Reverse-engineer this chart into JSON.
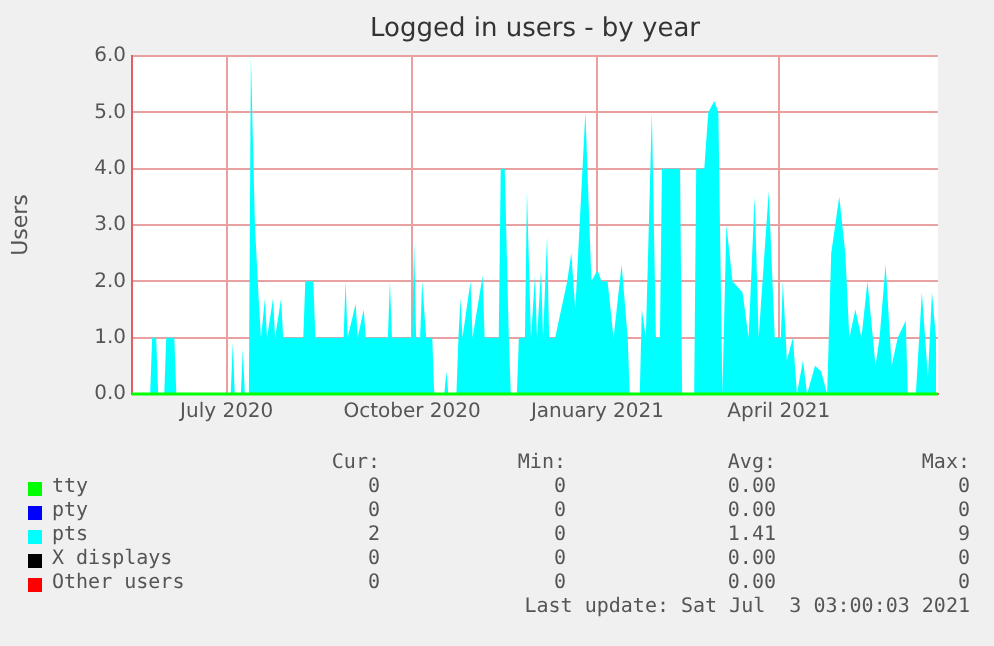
{
  "chart_data": {
    "type": "area",
    "title": "Logged in users - by year",
    "ylabel": "Users",
    "xlim": [
      "2020-05-15",
      "2021-06-19"
    ],
    "xticks": [
      {
        "value": "2020-07-01",
        "label": "July 2020"
      },
      {
        "value": "2020-10-01",
        "label": "October 2020"
      },
      {
        "value": "2021-01-01",
        "label": "January 2021"
      },
      {
        "value": "2021-04-01",
        "label": "April 2021"
      }
    ],
    "ylim": [
      0,
      6
    ],
    "yticks": [
      {
        "value": 0,
        "label": "0.0"
      },
      {
        "value": 1,
        "label": "1.0"
      },
      {
        "value": 2,
        "label": "2.0"
      },
      {
        "value": 3,
        "label": "3.0"
      },
      {
        "value": 4,
        "label": "4.0"
      },
      {
        "value": 5,
        "label": "5.0"
      },
      {
        "value": 6,
        "label": "6.0"
      }
    ],
    "grid": true,
    "legend": "bottom",
    "marker": "none",
    "series": [
      {
        "name": "tty",
        "type": "line",
        "color": "#00ff00",
        "x": [
          "2020-05-15",
          "2021-06-19"
        ],
        "values": [
          0,
          0
        ]
      },
      {
        "name": "pty",
        "type": "line",
        "color": "#0000ff"
      },
      {
        "name": "pts",
        "color": "#00ffff",
        "x": [
          "2020-05-15",
          "2020-05-24",
          "2020-05-25",
          "2020-05-27",
          "2020-05-28",
          "2020-05-31",
          "2020-06-01",
          "2020-06-05",
          "2020-06-06",
          "2020-07-03",
          "2020-07-04",
          "2020-07-05",
          "2020-07-08",
          "2020-07-09",
          "2020-07-10",
          "2020-07-12",
          "2020-07-13",
          "2020-07-15",
          "2020-07-17",
          "2020-07-18",
          "2020-07-20",
          "2020-07-21",
          "2020-07-24",
          "2020-07-25",
          "2020-07-28",
          "2020-07-29",
          "2020-08-08",
          "2020-08-09",
          "2020-08-13",
          "2020-08-14",
          "2020-08-28",
          "2020-08-29",
          "2020-08-30",
          "2020-09-03",
          "2020-09-04",
          "2020-09-07",
          "2020-09-08",
          "2020-09-19",
          "2020-09-20",
          "2020-09-21",
          "2020-10-01",
          "2020-10-02",
          "2020-10-03",
          "2020-10-05",
          "2020-10-06",
          "2020-10-08",
          "2020-10-11",
          "2020-10-12",
          "2020-10-17",
          "2020-10-18",
          "2020-10-19",
          "2020-10-23",
          "2020-10-24",
          "2020-10-25",
          "2020-10-26",
          "2020-10-30",
          "2020-10-31",
          "2020-11-05",
          "2020-11-06",
          "2020-11-13",
          "2020-11-14",
          "2020-11-16",
          "2020-11-18",
          "2020-11-19",
          "2020-11-22",
          "2020-11-23",
          "2020-11-26",
          "2020-11-27",
          "2020-11-29",
          "2020-12-01",
          "2020-12-02",
          "2020-12-04",
          "2020-12-05",
          "2020-12-07",
          "2020-12-08",
          "2020-12-11",
          "2020-12-17",
          "2020-12-19",
          "2020-12-21",
          "2020-12-26",
          "2020-12-29",
          "2021-01-01",
          "2021-01-03",
          "2021-01-06",
          "2021-01-09",
          "2021-01-13",
          "2021-01-16",
          "2021-01-17",
          "2021-01-22",
          "2021-01-23",
          "2021-01-25",
          "2021-01-28",
          "2021-01-30",
          "2021-02-01",
          "2021-02-02",
          "2021-02-11",
          "2021-02-12",
          "2021-02-18",
          "2021-02-19",
          "2021-02-23",
          "2021-02-25",
          "2021-02-28",
          "2021-03-02",
          "2021-03-04",
          "2021-03-06",
          "2021-03-09",
          "2021-03-14",
          "2021-03-17",
          "2021-03-20",
          "2021-03-22",
          "2021-03-27",
          "2021-03-30",
          "2021-04-02",
          "2021-04-03",
          "2021-04-05",
          "2021-04-08",
          "2021-04-10",
          "2021-04-13",
          "2021-04-15",
          "2021-04-19",
          "2021-04-22",
          "2021-04-25",
          "2021-04-27",
          "2021-05-01",
          "2021-05-04",
          "2021-05-06",
          "2021-05-09",
          "2021-05-12",
          "2021-05-15",
          "2021-05-19",
          "2021-05-21",
          "2021-05-24",
          "2021-05-27",
          "2021-05-30",
          "2021-06-03",
          "2021-06-04",
          "2021-06-08",
          "2021-06-11",
          "2021-06-14",
          "2021-06-16",
          "2021-06-18"
        ],
        "values": [
          0,
          0,
          1,
          1,
          0,
          0,
          1,
          1,
          0,
          0,
          0.9,
          0,
          0,
          0.8,
          0,
          0,
          6,
          3,
          1.6,
          1,
          1.7,
          1,
          1.7,
          1,
          1.7,
          1,
          1,
          2,
          2,
          1,
          1,
          2,
          1,
          1.6,
          1,
          1.5,
          1,
          1,
          2,
          1,
          1,
          2.7,
          1,
          1,
          2,
          1,
          1,
          0,
          0,
          0.4,
          0,
          0,
          1,
          1.7,
          1,
          2,
          1,
          2.1,
          1,
          1,
          4,
          4,
          1,
          0,
          0,
          1,
          1,
          3.6,
          1,
          2.1,
          1,
          2.2,
          1,
          2.8,
          1,
          1,
          2,
          2.5,
          1.5,
          5,
          2,
          2.2,
          2,
          2,
          1,
          2.3,
          1,
          0,
          0,
          1.5,
          1,
          5,
          1,
          1,
          4,
          4,
          0,
          0,
          4,
          4,
          5,
          5.2,
          5,
          0,
          3,
          2,
          1.8,
          1,
          3.5,
          1,
          3.6,
          1,
          1,
          2,
          0.6,
          1,
          0,
          0.6,
          0,
          0.5,
          0.4,
          0,
          2.5,
          3.5,
          2.5,
          1,
          1.5,
          1,
          2,
          0.5,
          1,
          2.3,
          0.5,
          1,
          1.3,
          0,
          0,
          1.8,
          0.3,
          1.8,
          1
        ]
      },
      {
        "name": "X displays",
        "type": "line",
        "color": "#000000"
      },
      {
        "name": "Other users",
        "type": "line",
        "color": "#ff0000"
      }
    ],
    "annotations": [
      "Cur:",
      "Min:",
      "Avg:",
      "Max:",
      "0",
      "0",
      "0.00",
      "0",
      "0",
      "0",
      "0.00",
      "0",
      "2",
      "0",
      "1.41",
      "9",
      "0",
      "0",
      "0.00",
      "0",
      "0",
      "0",
      "0.00",
      "0",
      "Last update: Sat Jul  3 03:00:03 2021"
    ]
  }
}
